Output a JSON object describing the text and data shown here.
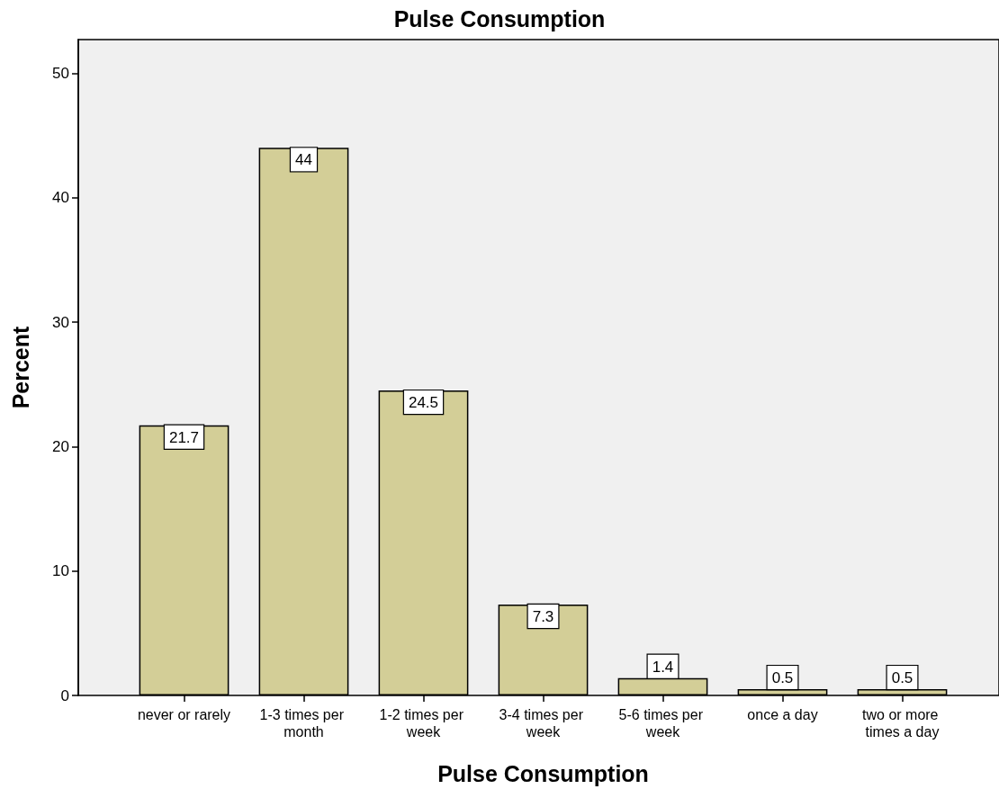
{
  "chart_data": {
    "type": "bar",
    "title": "Pulse Consumption",
    "xlabel": "Pulse Consumption",
    "ylabel": "Percent",
    "categories": [
      "never or rarely",
      "1-3 times per month",
      "1-2 times per week",
      "3-4 times per week",
      "5-6 times per week",
      "once a day",
      "two or more times a day"
    ],
    "values": [
      21.7,
      44,
      24.5,
      7.3,
      1.4,
      0.5,
      0.5
    ],
    "color": "#d3ce97",
    "ylim": [
      0,
      52.7
    ],
    "yticks": [
      0,
      10,
      20,
      30,
      40,
      50
    ],
    "data_labels": true
  }
}
